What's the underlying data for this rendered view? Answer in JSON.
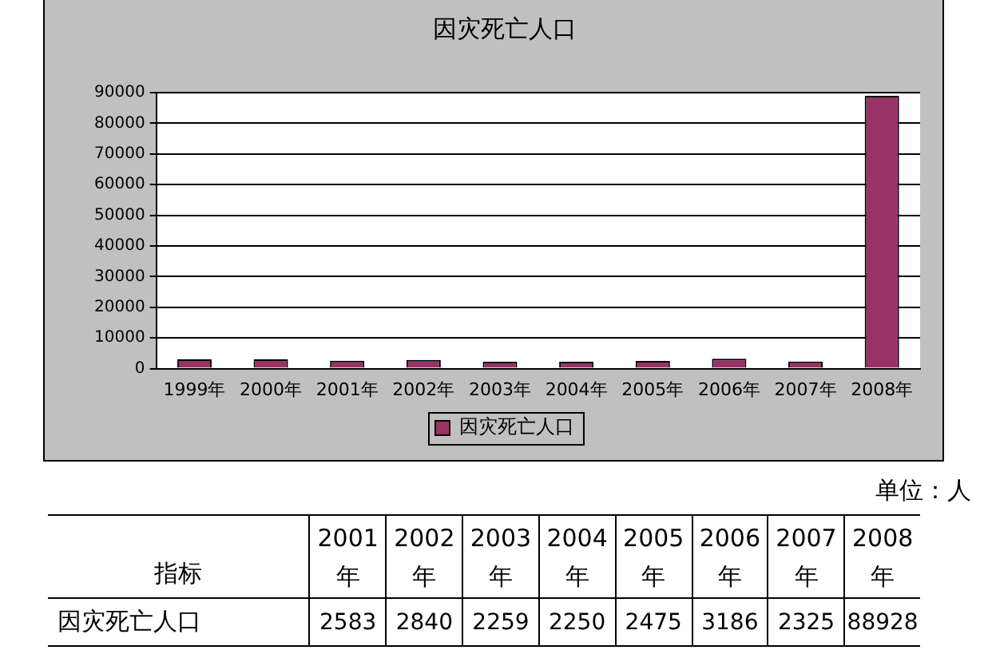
{
  "chart_data": {
    "type": "bar",
    "title": "因灾死亡人口",
    "categories": [
      "1999年",
      "2000年",
      "2001年",
      "2002年",
      "2003年",
      "2004年",
      "2005年",
      "2006年",
      "2007年",
      "2008年"
    ],
    "series": [
      {
        "name": "因灾死亡人口",
        "color": "#993366",
        "values": [
          3000,
          3000,
          2583,
          2840,
          2259,
          2250,
          2475,
          3186,
          2325,
          88928
        ],
        "value_labels": [
          null,
          null,
          "2583",
          "2840",
          "2259",
          "2250",
          "2475",
          "3186",
          "2325",
          "88928"
        ]
      }
    ],
    "ylim": [
      0,
      90000
    ],
    "yticks": [
      0,
      10000,
      20000,
      30000,
      40000,
      50000,
      60000,
      70000,
      80000,
      90000
    ],
    "grid": "y",
    "legend": "bottom",
    "annotations": [
      "单位：人",
      "指标"
    ]
  }
}
